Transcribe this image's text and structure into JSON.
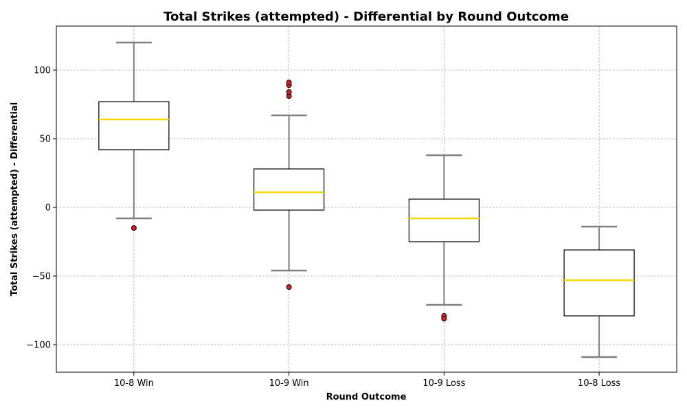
{
  "chart_data": {
    "type": "box",
    "title": "Total Strikes (attempted) - Differential by Round Outcome",
    "xlabel": "Round Outcome",
    "ylabel": "Total Strikes (attempted) - Differential",
    "ylim": [
      -120,
      132
    ],
    "yticks": [
      -100,
      -50,
      0,
      50,
      100
    ],
    "grid": true,
    "colors": {
      "box_edge": "#000000",
      "median": "#FFD700",
      "whisker": "#808080",
      "outlier_fill": "#D62020",
      "outlier_edge": "#000000",
      "grid": "#b0b0b0"
    },
    "categories": [
      "10-8 Win",
      "10-9 Win",
      "10-9 Loss",
      "10-8 Loss"
    ],
    "boxes": [
      {
        "category": "10-8 Win",
        "whisker_low": -8,
        "q1": 42,
        "median": 64,
        "q3": 77,
        "whisker_high": 120,
        "outliers": [
          -15
        ]
      },
      {
        "category": "10-9 Win",
        "whisker_low": -46,
        "q1": -2,
        "median": 11,
        "q3": 28,
        "whisker_high": 67,
        "outliers": [
          -58,
          81,
          84,
          89,
          91
        ]
      },
      {
        "category": "10-9 Loss",
        "whisker_low": -71,
        "q1": -25,
        "median": -8,
        "q3": 6,
        "whisker_high": 38,
        "outliers": [
          -79,
          -81
        ]
      },
      {
        "category": "10-8 Loss",
        "whisker_low": -109,
        "q1": -79,
        "median": -53,
        "q3": -31,
        "whisker_high": -14,
        "outliers": []
      }
    ]
  }
}
